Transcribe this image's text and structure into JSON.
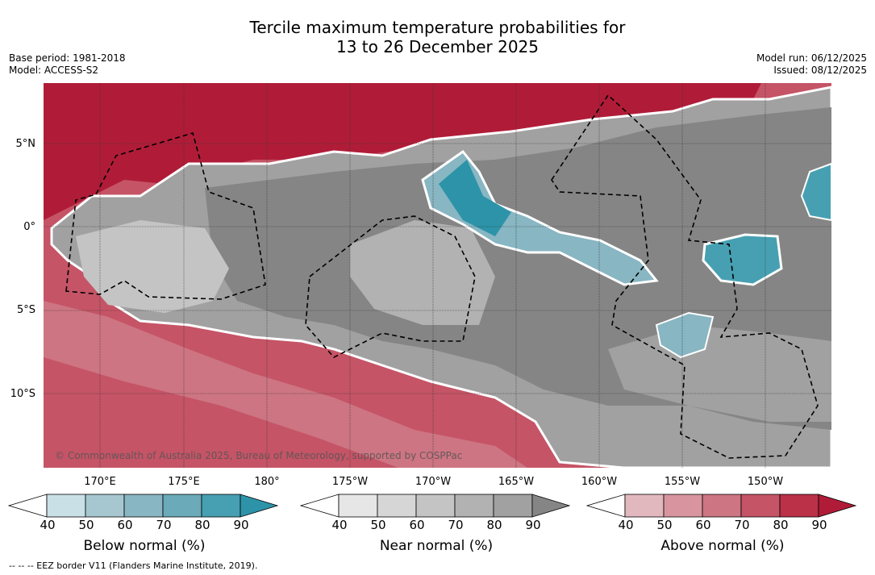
{
  "title": {
    "line1": "Tercile maximum temperature probabilities for",
    "line2": "13 to 26 December 2025"
  },
  "meta_left": {
    "base_period": "Base period: 1981-2018",
    "model": "Model: ACCESS-S2"
  },
  "meta_right": {
    "model_run": "Model run: 06/12/2025",
    "issued": "Issued: 08/12/2025"
  },
  "map": {
    "copyright": "© Commonwealth of Australia 2025, Bureau of Meteorology, supported by COSPPac",
    "lat_labels": [
      "5°N",
      "0°",
      "5°S",
      "10°S"
    ],
    "lon_labels": [
      "170°E",
      "175°E",
      "180°",
      "175°W",
      "170°W",
      "165°W",
      "160°W",
      "155°W",
      "150°W"
    ]
  },
  "colorbars": [
    {
      "name": "below-normal",
      "title": "Below normal (%)",
      "ticks": [
        "40",
        "50",
        "60",
        "70",
        "80",
        "90"
      ],
      "colors": [
        "#ffffff",
        "#c9e0e6",
        "#a6c7cf",
        "#88b6c2",
        "#6aaab9",
        "#47a0b2",
        "#2d93a8"
      ]
    },
    {
      "name": "near-normal",
      "title": "Near normal (%)",
      "ticks": [
        "40",
        "50",
        "60",
        "70",
        "80",
        "90"
      ],
      "colors": [
        "#ffffff",
        "#e6e6e6",
        "#d6d6d6",
        "#c4c4c4",
        "#b2b2b2",
        "#a1a1a1",
        "#858585"
      ]
    },
    {
      "name": "above-normal",
      "title": "Above normal (%)",
      "ticks": [
        "40",
        "50",
        "60",
        "70",
        "80",
        "90"
      ],
      "colors": [
        "#ffffff",
        "#e2b8bf",
        "#d8959f",
        "#cd7582",
        "#c55466",
        "#ba3148",
        "#b01c38"
      ]
    }
  ],
  "footnote": "--  --  -- EEZ border V11 (Flanders Marine Institute, 2019)."
}
